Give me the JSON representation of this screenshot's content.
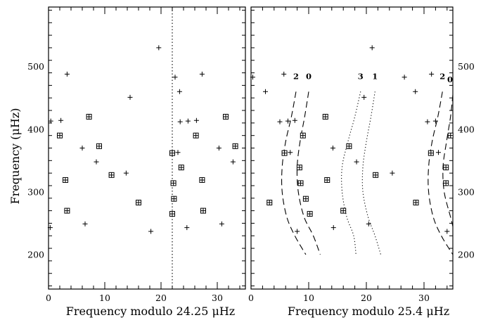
{
  "chart_data": [
    {
      "type": "scatter",
      "title": "",
      "xlabel": "Frequency modulo 24.25 μHz",
      "ylabel": "Frequency (μHz)",
      "xlim": [
        0,
        35
      ],
      "ylim": [
        145,
        595
      ],
      "x_ticks": [
        0,
        10,
        20,
        30
      ],
      "y_ticks": [
        200,
        300,
        400,
        500
      ],
      "crosses": [
        {
          "x": 0.3,
          "y": 243
        },
        {
          "x": 0.4,
          "y": 413
        },
        {
          "x": 2.2,
          "y": 414
        },
        {
          "x": 3.3,
          "y": 488
        },
        {
          "x": 6.0,
          "y": 370
        },
        {
          "x": 6.5,
          "y": 249
        },
        {
          "x": 8.5,
          "y": 348
        },
        {
          "x": 13.8,
          "y": 330
        },
        {
          "x": 14.5,
          "y": 451
        },
        {
          "x": 18.2,
          "y": 237
        },
        {
          "x": 19.6,
          "y": 530
        },
        {
          "x": 22.5,
          "y": 483
        },
        {
          "x": 23.0,
          "y": 363
        },
        {
          "x": 23.3,
          "y": 460
        },
        {
          "x": 23.4,
          "y": 412
        },
        {
          "x": 24.6,
          "y": 243
        },
        {
          "x": 24.8,
          "y": 413
        },
        {
          "x": 26.3,
          "y": 414
        },
        {
          "x": 27.3,
          "y": 488
        },
        {
          "x": 30.3,
          "y": 370
        },
        {
          "x": 30.8,
          "y": 249
        },
        {
          "x": 32.8,
          "y": 348
        }
      ],
      "boxes": [
        {
          "x": 2.0,
          "y": 390
        },
        {
          "x": 3.0,
          "y": 319
        },
        {
          "x": 3.3,
          "y": 270
        },
        {
          "x": 7.2,
          "y": 420
        },
        {
          "x": 9.0,
          "y": 373
        },
        {
          "x": 11.2,
          "y": 327
        },
        {
          "x": 16.0,
          "y": 283
        },
        {
          "x": 22.0,
          "y": 362
        },
        {
          "x": 22.0,
          "y": 265
        },
        {
          "x": 22.2,
          "y": 314
        },
        {
          "x": 22.3,
          "y": 289
        },
        {
          "x": 23.6,
          "y": 339
        },
        {
          "x": 26.2,
          "y": 390
        },
        {
          "x": 27.3,
          "y": 319
        },
        {
          "x": 27.5,
          "y": 270
        },
        {
          "x": 31.5,
          "y": 420
        },
        {
          "x": 33.2,
          "y": 373
        }
      ],
      "vertical_line_x": 22
    },
    {
      "type": "scatter",
      "title": "",
      "xlabel": "Frequency modulo 25.4 μHz",
      "xlim": [
        0,
        35
      ],
      "ylim": [
        145,
        595
      ],
      "x_ticks": [
        0,
        10,
        20,
        30
      ],
      "y_ticks": [
        200,
        300,
        400,
        500
      ],
      "crosses": [
        {
          "x": 0.3,
          "y": 483
        },
        {
          "x": 2.5,
          "y": 460
        },
        {
          "x": 5.0,
          "y": 412
        },
        {
          "x": 5.7,
          "y": 488
        },
        {
          "x": 6.4,
          "y": 413
        },
        {
          "x": 6.8,
          "y": 363
        },
        {
          "x": 7.6,
          "y": 414
        },
        {
          "x": 8.0,
          "y": 237
        },
        {
          "x": 14.2,
          "y": 370
        },
        {
          "x": 14.3,
          "y": 243
        },
        {
          "x": 18.3,
          "y": 348
        },
        {
          "x": 19.6,
          "y": 451
        },
        {
          "x": 20.4,
          "y": 249
        },
        {
          "x": 21.0,
          "y": 530
        },
        {
          "x": 24.5,
          "y": 330
        },
        {
          "x": 26.6,
          "y": 483
        },
        {
          "x": 28.5,
          "y": 460
        },
        {
          "x": 30.6,
          "y": 412
        },
        {
          "x": 31.3,
          "y": 488
        },
        {
          "x": 32.0,
          "y": 413
        },
        {
          "x": 32.5,
          "y": 363
        },
        {
          "x": 34.0,
          "y": 237
        }
      ],
      "boxes": [
        {
          "x": 3.2,
          "y": 283
        },
        {
          "x": 5.8,
          "y": 362
        },
        {
          "x": 8.4,
          "y": 339
        },
        {
          "x": 8.6,
          "y": 314
        },
        {
          "x": 9.0,
          "y": 390
        },
        {
          "x": 9.5,
          "y": 289
        },
        {
          "x": 10.2,
          "y": 265
        },
        {
          "x": 12.9,
          "y": 420
        },
        {
          "x": 13.2,
          "y": 319
        },
        {
          "x": 16.0,
          "y": 270
        },
        {
          "x": 17.0,
          "y": 373
        },
        {
          "x": 21.6,
          "y": 327
        },
        {
          "x": 28.6,
          "y": 283
        },
        {
          "x": 31.2,
          "y": 362
        },
        {
          "x": 33.8,
          "y": 339
        },
        {
          "x": 33.8,
          "y": 314
        },
        {
          "x": 34.6,
          "y": 390
        }
      ],
      "ridges": [
        {
          "label": "2",
          "style": "dashed",
          "points": [
            [
              7.8,
              460
            ],
            [
              7.0,
              420
            ],
            [
              6.0,
              380
            ],
            [
              5.4,
              340
            ],
            [
              5.4,
              300
            ],
            [
              6.2,
              260
            ],
            [
              7.6,
              230
            ],
            [
              9.5,
              200
            ]
          ]
        },
        {
          "label": "0",
          "style": "dashed",
          "points": [
            [
              10.0,
              460
            ],
            [
              9.3,
              420
            ],
            [
              8.5,
              380
            ],
            [
              8.0,
              340
            ],
            [
              8.2,
              300
            ],
            [
              9.2,
              260
            ],
            [
              10.8,
              230
            ],
            [
              12.0,
              200
            ]
          ]
        },
        {
          "label": "3",
          "style": "dotted",
          "points": [
            [
              19.0,
              460
            ],
            [
              18.0,
              420
            ],
            [
              16.8,
              380
            ],
            [
              15.8,
              340
            ],
            [
              15.8,
              300
            ],
            [
              16.6,
              260
            ],
            [
              17.8,
              230
            ],
            [
              18.2,
              200
            ]
          ]
        },
        {
          "label": "1",
          "style": "dotted",
          "points": [
            [
              21.5,
              460
            ],
            [
              20.8,
              420
            ],
            [
              20.0,
              380
            ],
            [
              19.4,
              340
            ],
            [
              19.4,
              300
            ],
            [
              20.3,
              260
            ],
            [
              21.5,
              230
            ],
            [
              22.5,
              200
            ]
          ]
        },
        {
          "label": "2",
          "style": "dashed",
          "points": [
            [
              33.2,
              460
            ],
            [
              32.4,
              420
            ],
            [
              31.4,
              380
            ],
            [
              30.8,
              340
            ],
            [
              30.8,
              300
            ],
            [
              31.6,
              260
            ],
            [
              33.0,
              230
            ],
            [
              35.0,
              200
            ]
          ]
        },
        {
          "label": "0",
          "style": "dashed",
          "points": [
            [
              35.0,
              455
            ],
            [
              34.6,
              420
            ],
            [
              33.9,
              380
            ],
            [
              33.3,
              340
            ],
            [
              33.5,
              300
            ],
            [
              34.6,
              260
            ],
            [
              35.0,
              245
            ]
          ]
        }
      ]
    }
  ]
}
